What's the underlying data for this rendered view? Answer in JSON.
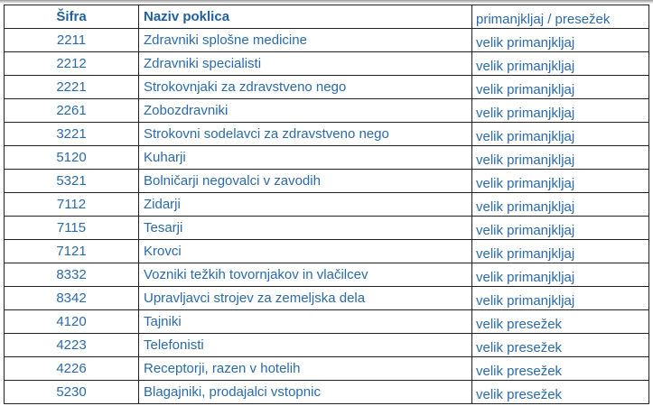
{
  "table": {
    "headers": [
      "Šifra",
      "Naziv poklica",
      "primanjkljaj / presežek"
    ],
    "rows": [
      [
        "2211",
        "Zdravniki splošne medicine",
        "velik primanjkljaj"
      ],
      [
        "2212",
        "Zdravniki specialisti",
        "velik primanjkljaj"
      ],
      [
        "2221",
        "Strokovnjaki za zdravstveno nego",
        "velik primanjkljaj"
      ],
      [
        "2261",
        "Zobozdravniki",
        "velik primanjkljaj"
      ],
      [
        "3221",
        "Strokovni sodelavci za zdravstveno nego",
        "velik primanjkljaj"
      ],
      [
        "5120",
        "Kuharji",
        "velik primanjkljaj"
      ],
      [
        "5321",
        "Bolničarji negovalci v zavodih",
        "velik primanjkljaj"
      ],
      [
        "7112",
        "Zidarji",
        "velik primanjkljaj"
      ],
      [
        "7115",
        "Tesarji",
        "velik primanjkljaj"
      ],
      [
        "7121",
        "Krovci",
        "velik primanjkljaj"
      ],
      [
        "8332",
        "Vozniki težkih tovornjakov in vlačilcev",
        "velik primanjkljaj"
      ],
      [
        "8342",
        "Upravljavci strojev za zemeljska dela",
        "velik primanjkljaj"
      ],
      [
        "4120",
        "Tajniki",
        "velik presežek"
      ],
      [
        "4223",
        "Telefonisti",
        "velik presežek"
      ],
      [
        "4226",
        "Receptorji, razen v hotelih",
        "velik presežek"
      ],
      [
        "5230",
        "Blagajniki, prodajalci vstopnic",
        "velik presežek"
      ]
    ]
  }
}
